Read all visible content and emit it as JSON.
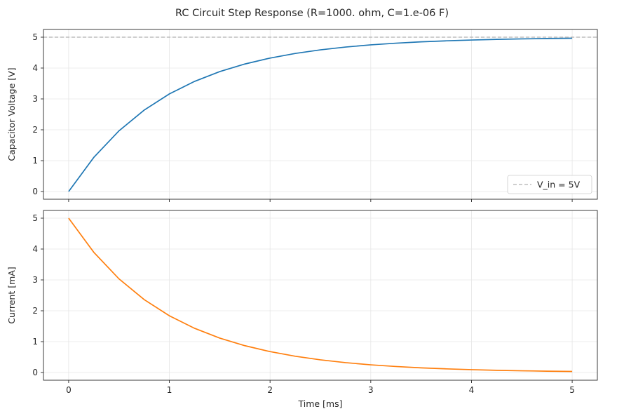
{
  "figure": {
    "suptitle": "RC Circuit Step Response (R=1000. ohm, C=1.e-06 F)"
  },
  "chart_data": [
    {
      "type": "line",
      "title": "",
      "xlabel": "",
      "ylabel": "Capacitor Voltage [V]",
      "xlim": [
        -0.25,
        5.25
      ],
      "ylim": [
        -0.25,
        5.25
      ],
      "xticks": [
        0,
        1,
        2,
        3,
        4,
        5
      ],
      "xtick_labels_visible": false,
      "yticks": [
        0,
        1,
        2,
        3,
        4,
        5
      ],
      "grid": true,
      "legend": "lower-right",
      "series": [
        {
          "name": "",
          "color": "#1f77b4",
          "x": [
            0,
            0.25,
            0.5,
            0.75,
            1.0,
            1.25,
            1.5,
            1.75,
            2.0,
            2.25,
            2.5,
            2.75,
            3.0,
            3.25,
            3.5,
            3.75,
            4.0,
            4.25,
            4.5,
            4.75,
            5.0
          ],
          "y": [
            0,
            1.106,
            1.967,
            2.638,
            3.161,
            3.567,
            3.884,
            4.131,
            4.323,
            4.473,
            4.59,
            4.68,
            4.751,
            4.806,
            4.849,
            4.882,
            4.908,
            4.929,
            4.944,
            4.957,
            4.966
          ]
        },
        {
          "name": "V_in = 5V",
          "color": "#b0b0b0",
          "style": "dashed",
          "x": [
            -0.25,
            5.25
          ],
          "y": [
            5,
            5
          ]
        }
      ]
    },
    {
      "type": "line",
      "title": "",
      "xlabel": "Time [ms]",
      "ylabel": "Current [mA]",
      "xlim": [
        -0.25,
        5.25
      ],
      "ylim": [
        -0.25,
        5.25
      ],
      "xticks": [
        0,
        1,
        2,
        3,
        4,
        5
      ],
      "yticks": [
        0,
        1,
        2,
        3,
        4,
        5
      ],
      "grid": true,
      "series": [
        {
          "name": "",
          "color": "#ff7f0e",
          "x": [
            0,
            0.25,
            0.5,
            0.75,
            1.0,
            1.25,
            1.5,
            1.75,
            2.0,
            2.25,
            2.5,
            2.75,
            3.0,
            3.25,
            3.5,
            3.75,
            4.0,
            4.25,
            4.5,
            4.75,
            5.0
          ],
          "y": [
            5.0,
            3.894,
            3.033,
            2.362,
            1.839,
            1.433,
            1.116,
            0.869,
            0.677,
            0.527,
            0.41,
            0.32,
            0.249,
            0.194,
            0.151,
            0.118,
            0.092,
            0.071,
            0.056,
            0.043,
            0.034
          ]
        }
      ]
    }
  ]
}
